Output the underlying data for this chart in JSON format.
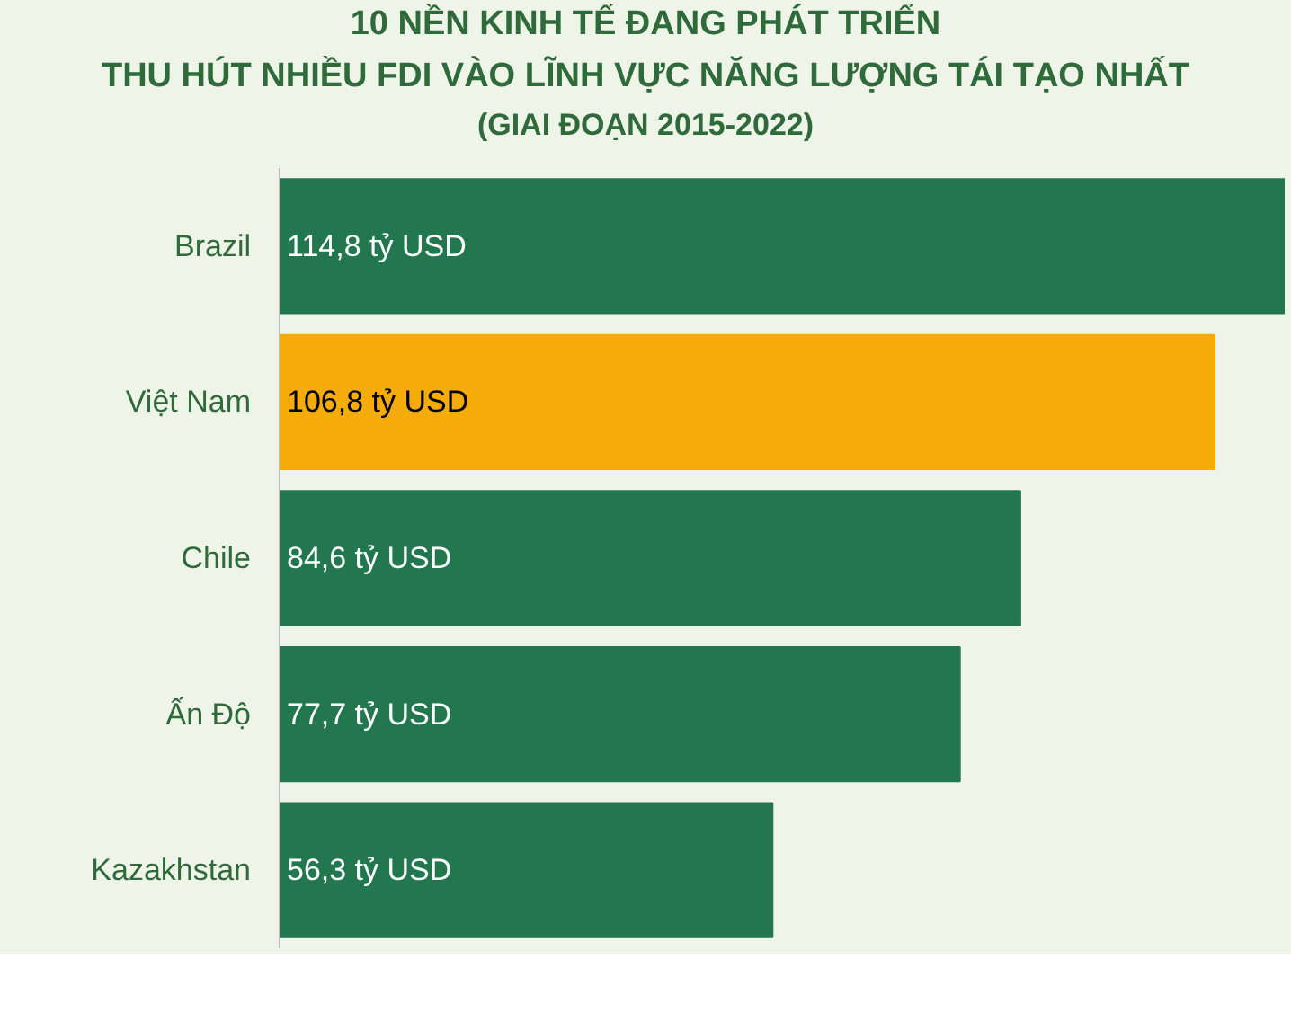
{
  "chart_data": {
    "type": "bar",
    "orientation": "horizontal",
    "title": "10 NỀN KINH TẾ ĐANG PHÁT TRIỂN\nTHU HÚT NHIỀU FDI VÀO LĨNH VỰC NĂNG LƯỢNG TÁI TẠO NHẤT",
    "subtitle": "(GIAI ĐOẠN 2015-2022)",
    "categories": [
      "Brazil",
      "Việt Nam",
      "Chile",
      "Ấn Độ",
      "Kazakhstan"
    ],
    "values": [
      114.8,
      106.8,
      84.6,
      77.7,
      56.3
    ],
    "colors": [
      "#22774f",
      "#f5ab0a",
      "#22774f",
      "#22774f",
      "#22774f"
    ],
    "value_labels": [
      "114,8 tỷ USD",
      "106,8 tỷ USD",
      "84,6 tỷ USD",
      "77,7 tỷ USD",
      "56,3 tỷ USD"
    ],
    "grid": false
  }
}
